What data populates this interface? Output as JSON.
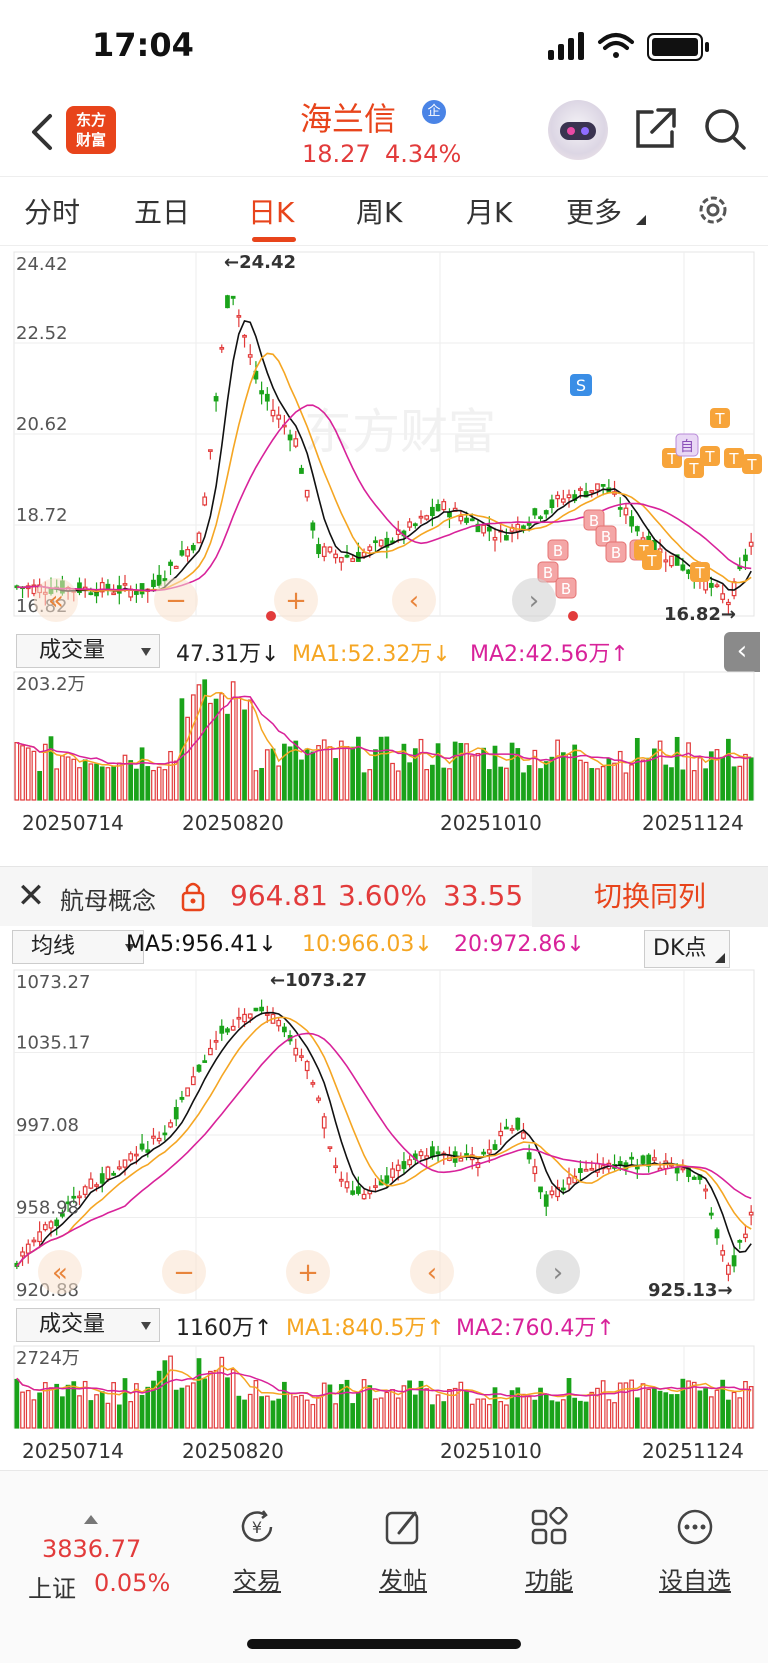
{
  "status": {
    "time": "17:04"
  },
  "header": {
    "logo_line1": "东方",
    "logo_line2": "财富",
    "stock_name": "海兰信",
    "verified_badge": "企",
    "price": "18.27",
    "change_pct": "4.34%"
  },
  "tabs": [
    "分时",
    "五日",
    "日K",
    "周K",
    "月K",
    "更多"
  ],
  "active_tab": "日K",
  "chart1": {
    "y_labels": [
      "24.42",
      "22.52",
      "20.62",
      "18.72",
      "16.82"
    ],
    "high_marker": "24.42",
    "low_marker": "16.82",
    "signal_s": "S",
    "signal_b": "B",
    "signal_t": "T",
    "signal_zi": "自",
    "watermark": "东方财富",
    "volume": {
      "selector": "成交量",
      "value": "47.31万↓",
      "ma1": "MA1:52.32万↓",
      "ma2": "MA2:42.56万↑",
      "max_label": "203.2万"
    },
    "x_labels": [
      "20250714",
      "20250820",
      "20251010",
      "20251124"
    ]
  },
  "concept": {
    "name": "航母概念",
    "price": "964.81",
    "change_pct": "3.60%",
    "change": "33.55",
    "switch_label": "切换同列"
  },
  "chart2": {
    "ma_selector": "均线",
    "ma5": "MA5:956.41↓",
    "ma10": "10:966.03↓",
    "ma20": "20:972.86↓",
    "dk_label": "DK点",
    "y_labels": [
      "1073.27",
      "1035.17",
      "997.08",
      "958.98",
      "920.88"
    ],
    "high_marker": "1073.27",
    "low_marker": "925.13",
    "volume": {
      "selector": "成交量",
      "value": "1160万↑",
      "ma1": "MA1:840.5万↑",
      "ma2": "MA2:760.4万↑",
      "max_label": "2724万"
    },
    "x_labels": [
      "20250714",
      "20250820",
      "20251010",
      "20251124"
    ]
  },
  "bottom_nav": {
    "index_value": "3836.77",
    "index_name": "上证",
    "index_pct": "0.05%",
    "items": [
      "交易",
      "发帖",
      "功能",
      "设自选"
    ]
  },
  "colors": {
    "up": "#e23b3b",
    "down": "#1aa31a",
    "ma1": "#111111",
    "ma2": "#f5a623",
    "ma3": "#d8229a",
    "accent": "#e8441b"
  }
}
